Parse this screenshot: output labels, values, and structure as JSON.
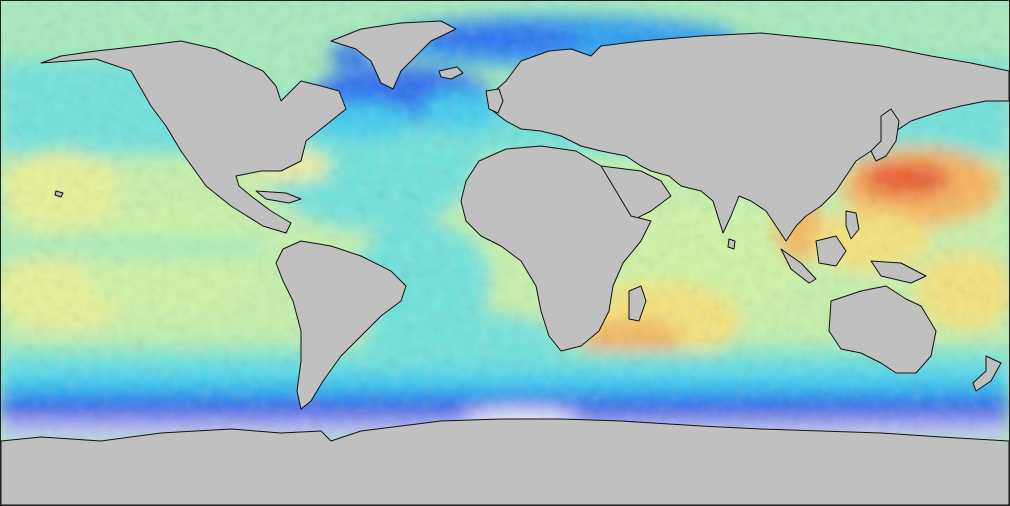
{
  "map": {
    "projection": "equirectangular",
    "colors": {
      "land": "#c0c0c0",
      "coastline": "#111111",
      "scale": [
        "#f4f4ff",
        "#c8cdf6",
        "#8c9bee",
        "#1c3ce6",
        "#2c6cf0",
        "#2a9ef2",
        "#3ecdf0",
        "#6ee3dc",
        "#a6ecbc",
        "#d6f7a2",
        "#f6e47a",
        "#f7b45a",
        "#ea5a33"
      ]
    }
  }
}
